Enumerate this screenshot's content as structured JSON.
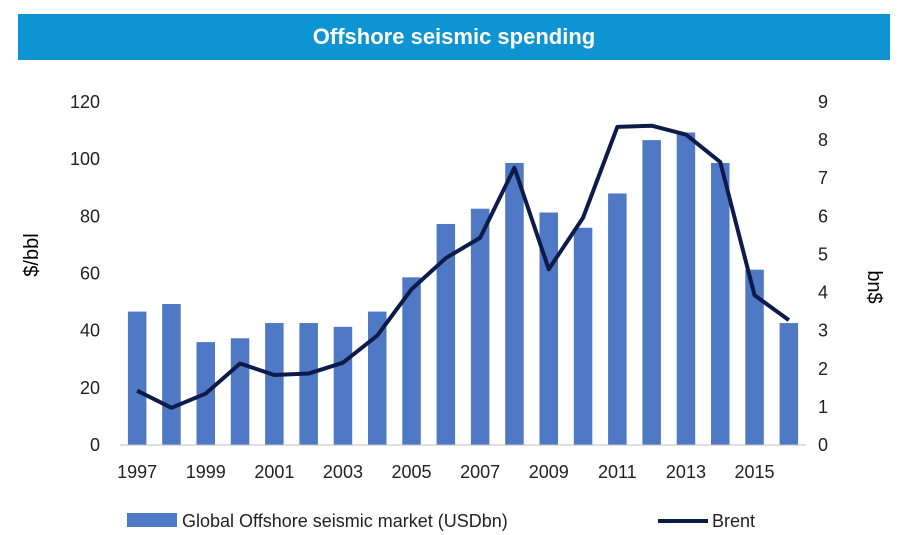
{
  "chart_data": {
    "type": "bar",
    "title": "Offshore seismic spending",
    "x": [
      "1997",
      "1998",
      "1999",
      "2000",
      "2001",
      "2002",
      "2003",
      "2004",
      "2005",
      "2006",
      "2007",
      "2008",
      "2009",
      "2010",
      "2011",
      "2012",
      "2013",
      "2014",
      "2015",
      "2016"
    ],
    "x_tick_labels": [
      "1997",
      "1999",
      "2001",
      "2003",
      "2005",
      "2007",
      "2009",
      "2011",
      "2013",
      "2015"
    ],
    "ylabel_left": "$/bbl",
    "ylabel_right": "bn$",
    "ylim_left": [
      0,
      120
    ],
    "ylim_right": [
      0,
      9
    ],
    "yticks_left": [
      0,
      20,
      40,
      60,
      80,
      100,
      120
    ],
    "yticks_right": [
      0,
      1,
      2,
      3,
      4,
      5,
      6,
      7,
      8,
      9
    ],
    "grid": false,
    "legend_position": "bottom",
    "series": [
      {
        "name": "Global Offshore seismic market (USDbn)",
        "type": "bar",
        "axis": "right",
        "color": "#4f78c5",
        "values": [
          3.5,
          3.7,
          2.7,
          2.8,
          3.2,
          3.2,
          3.1,
          3.5,
          4.4,
          5.8,
          6.2,
          7.4,
          6.1,
          5.7,
          6.6,
          8.0,
          8.2,
          7.4,
          4.6,
          3.2
        ]
      },
      {
        "name": "Brent",
        "type": "line",
        "axis": "left",
        "color": "#0d1b4a",
        "values": [
          19,
          13,
          18,
          28.5,
          24.5,
          25,
          28.8,
          38.3,
          54.5,
          65.4,
          72.5,
          97,
          61.5,
          79.5,
          111.3,
          111.7,
          108.6,
          99,
          52.4,
          43.7
        ]
      }
    ]
  }
}
